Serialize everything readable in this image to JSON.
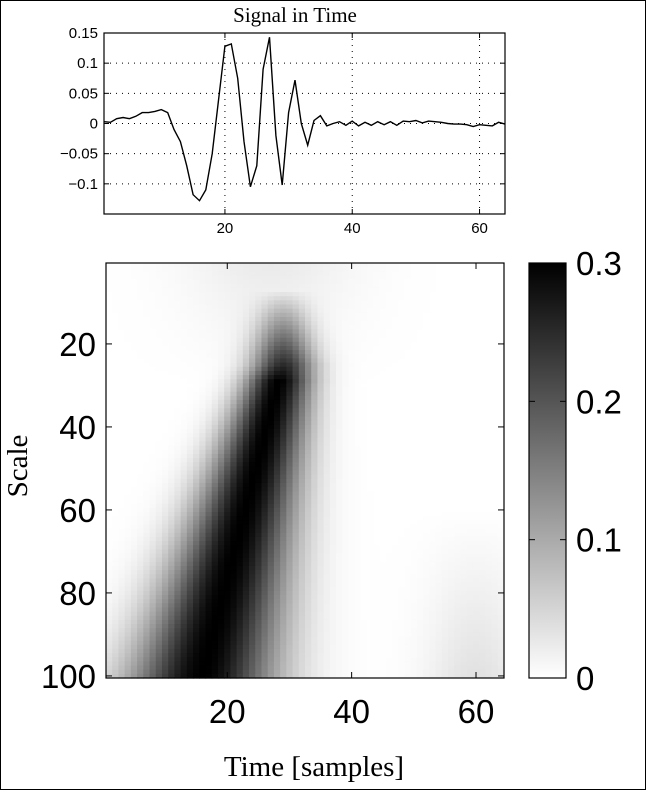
{
  "chart_data": [
    {
      "type": "line",
      "title": "Signal in Time",
      "xlabel": "",
      "ylabel": "",
      "xlim": [
        1,
        64
      ],
      "ylim": [
        -0.15,
        0.15
      ],
      "xticks": [
        20,
        40,
        60
      ],
      "yticks": [
        0.15,
        0.1,
        0.05,
        0,
        -0.05,
        -0.1
      ],
      "ytick_labels": [
        "0.15",
        "0.1",
        "0.05",
        "0",
        "−0.05",
        "−0.1"
      ],
      "grid": true,
      "x": [
        1,
        2,
        3,
        4,
        5,
        6,
        7,
        8,
        9,
        10,
        11,
        12,
        13,
        14,
        15,
        16,
        17,
        18,
        19,
        20,
        21,
        22,
        23,
        24,
        25,
        26,
        27,
        28,
        29,
        30,
        31,
        32,
        33,
        34,
        35,
        36,
        37,
        38,
        39,
        40,
        41,
        42,
        43,
        44,
        45,
        46,
        47,
        48,
        49,
        50,
        51,
        52,
        53,
        54,
        55,
        56,
        57,
        58,
        59,
        60,
        61,
        62,
        63,
        64
      ],
      "y": [
        0.003,
        0.002,
        0.008,
        0.01,
        0.008,
        0.012,
        0.018,
        0.018,
        0.02,
        0.023,
        0.018,
        -0.01,
        -0.03,
        -0.07,
        -0.118,
        -0.128,
        -0.11,
        -0.05,
        0.04,
        0.128,
        0.132,
        0.075,
        -0.03,
        -0.105,
        -0.07,
        0.09,
        0.143,
        -0.02,
        -0.102,
        0.018,
        0.072,
        0.0,
        -0.036,
        0.005,
        0.013,
        -0.004,
        0.0,
        0.003,
        -0.003,
        0.004,
        -0.004,
        0.002,
        -0.003,
        0.003,
        -0.002,
        0.003,
        -0.003,
        0.004,
        0.003,
        0.005,
        0.001,
        0.004,
        0.003,
        0.002,
        0.0,
        -0.001,
        -0.001,
        -0.002,
        -0.005,
        -0.002,
        -0.003,
        -0.004,
        0.002,
        -0.001
      ]
    },
    {
      "type": "heatmap",
      "title": "",
      "xlabel": "Time [samples]",
      "ylabel": "Scale",
      "xlim": [
        1,
        64
      ],
      "ylim": [
        1,
        100
      ],
      "xticks": [
        20,
        40,
        60
      ],
      "yticks": [
        20,
        40,
        60,
        80,
        100
      ],
      "y_reversed": true,
      "colormap": "gray-reversed",
      "colorbar": {
        "min": 0,
        "max": 0.3,
        "ticks": [
          0,
          0.1,
          0.2,
          0.3
        ],
        "tick_labels": [
          "0",
          "0.1",
          "0.2",
          "0.3"
        ]
      },
      "features": [
        {
          "kind": "ridge",
          "scale_range": [
            25,
            100
          ],
          "time_at_top": 29,
          "time_at_bottom": 16,
          "peak_value": 0.3
        },
        {
          "kind": "faint-upper-band",
          "scale_range": [
            1,
            25
          ],
          "max_value": 0.03
        }
      ]
    }
  ]
}
